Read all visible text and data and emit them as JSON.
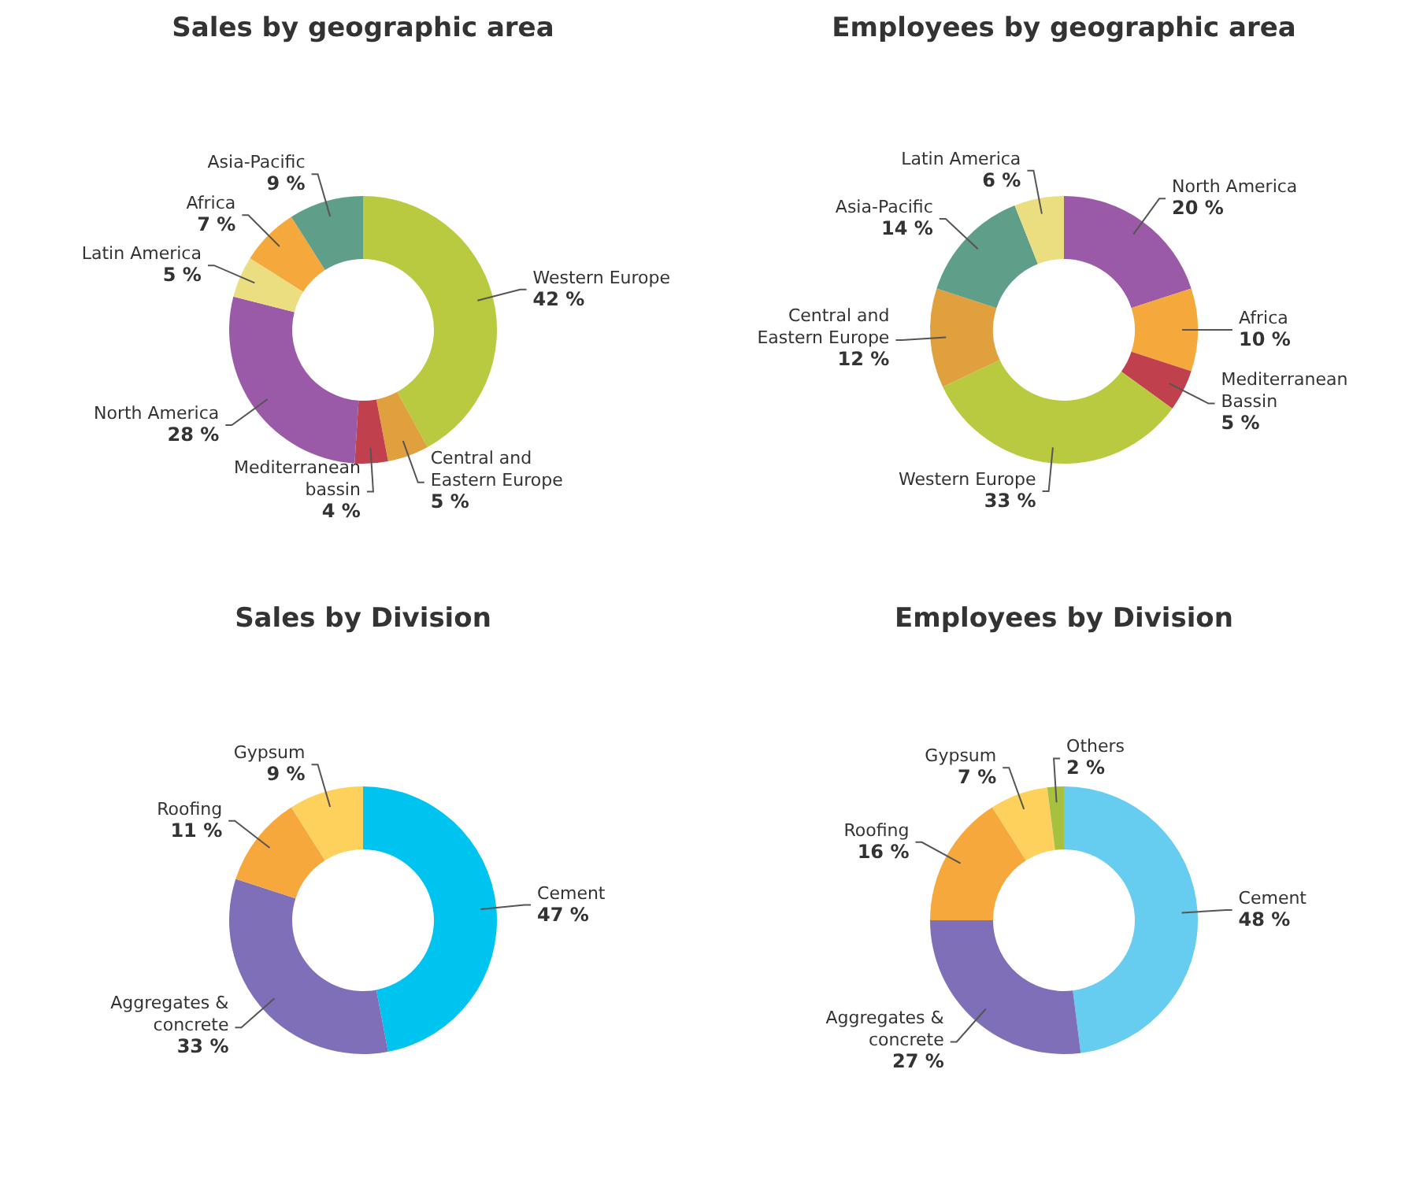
{
  "chart_data": [
    {
      "type": "donut",
      "title": "Sales by geographic area",
      "categories": [
        "Western Europe",
        "Central and Eastern Europe",
        "Mediterranean bassin",
        "North America",
        "Latin America",
        "Africa",
        "Asia-Pacific"
      ],
      "values": [
        42,
        5,
        4,
        28,
        5,
        7,
        9
      ],
      "value_labels": [
        "42 %",
        "5 %",
        "4 %",
        "28 %",
        "5 %",
        "7 %",
        "9 %"
      ],
      "colors": [
        "#b9c940",
        "#e0a03e",
        "#c0404e",
        "#9b5aa8",
        "#ebde80",
        "#f5a83c",
        "#5f9e88"
      ],
      "legend": false
    },
    {
      "type": "donut",
      "title": "Employees by geographic area",
      "categories": [
        "North America",
        "Africa",
        "Mediterranean Bassin",
        "Western Europe",
        "Central and Eastern Europe",
        "Asia-Pacific",
        "Latin America"
      ],
      "values": [
        20,
        10,
        5,
        33,
        12,
        14,
        6
      ],
      "value_labels": [
        "20 %",
        "10 %",
        "5 %",
        "33 %",
        "12 %",
        "14 %",
        "6 %"
      ],
      "colors": [
        "#9b5aa8",
        "#f5a83c",
        "#c0404e",
        "#b9c940",
        "#e0a03e",
        "#5f9e88",
        "#ebde80"
      ],
      "legend": false
    },
    {
      "type": "donut",
      "title": "Sales by Division",
      "categories": [
        "Cement",
        "Aggregates & concrete",
        "Roofing",
        "Gypsum"
      ],
      "values": [
        47,
        33,
        11,
        9
      ],
      "value_labels": [
        "47 %",
        "33 %",
        "11 %",
        "9 %"
      ],
      "colors": [
        "#00c4f0",
        "#7f6fb8",
        "#f7a83c",
        "#fdd15c"
      ],
      "legend": false
    },
    {
      "type": "donut",
      "title": "Employees by Division",
      "categories": [
        "Cement",
        "Aggregates & concrete",
        "Roofing",
        "Gypsum",
        "Others"
      ],
      "values": [
        48,
        27,
        16,
        7,
        2
      ],
      "value_labels": [
        "48 %",
        "27 %",
        "16 %",
        "7 %",
        "2 %"
      ],
      "colors": [
        "#66ccf0",
        "#7f6fb8",
        "#f7a83c",
        "#fdd15c",
        "#a8c040"
      ],
      "legend": false
    }
  ]
}
